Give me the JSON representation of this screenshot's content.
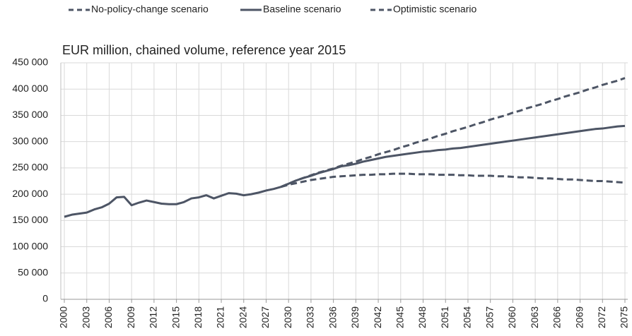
{
  "chart_data": {
    "type": "line",
    "subtitle": "EUR million, chained volume, reference year 2015",
    "x": [
      2000,
      2001,
      2002,
      2003,
      2004,
      2005,
      2006,
      2007,
      2008,
      2009,
      2010,
      2011,
      2012,
      2013,
      2014,
      2015,
      2016,
      2017,
      2018,
      2019,
      2020,
      2021,
      2022,
      2023,
      2024,
      2025,
      2026,
      2027,
      2028,
      2029,
      2030,
      2031,
      2032,
      2033,
      2034,
      2035,
      2036,
      2037,
      2038,
      2039,
      2040,
      2041,
      2042,
      2043,
      2044,
      2045,
      2046,
      2047,
      2048,
      2049,
      2050,
      2051,
      2052,
      2053,
      2054,
      2055,
      2056,
      2057,
      2058,
      2059,
      2060,
      2061,
      2062,
      2063,
      2064,
      2065,
      2066,
      2067,
      2068,
      2069,
      2070,
      2071,
      2072,
      2073,
      2074,
      2075
    ],
    "series": [
      {
        "name": "No-policy-change scenario",
        "color": "#4d5565",
        "dashed": true,
        "values": [
          null,
          null,
          null,
          null,
          null,
          null,
          null,
          null,
          null,
          null,
          null,
          null,
          null,
          null,
          null,
          null,
          null,
          null,
          null,
          null,
          null,
          null,
          null,
          null,
          null,
          null,
          null,
          null,
          null,
          214000,
          218000,
          221000,
          224000,
          227000,
          229000,
          231000,
          233000,
          234000,
          235000,
          236000,
          237000,
          237000,
          238000,
          238000,
          239000,
          239000,
          239000,
          238000,
          238000,
          238000,
          237000,
          237000,
          237000,
          236000,
          236000,
          235000,
          235000,
          235000,
          234000,
          234000,
          233000,
          232000,
          232000,
          231000,
          230000,
          230000,
          229000,
          228000,
          228000,
          227000,
          226000,
          225000,
          225000,
          224000,
          223000,
          222000
        ]
      },
      {
        "name": "Baseline scenario",
        "color": "#4d5565",
        "dashed": false,
        "values": [
          157000,
          161000,
          163000,
          165000,
          171000,
          175000,
          182000,
          194000,
          195000,
          179000,
          184000,
          188000,
          185000,
          182000,
          181000,
          181000,
          185000,
          192000,
          194000,
          198000,
          192000,
          197000,
          202000,
          201000,
          198000,
          200000,
          203000,
          207000,
          210000,
          214000,
          220000,
          226000,
          231000,
          235000,
          240000,
          244000,
          248000,
          253000,
          255000,
          258000,
          262000,
          265000,
          268000,
          271000,
          273000,
          275000,
          277000,
          279000,
          281000,
          282000,
          284000,
          285000,
          287000,
          288000,
          290000,
          292000,
          294000,
          296000,
          298000,
          300000,
          302000,
          304000,
          306000,
          308000,
          310000,
          312000,
          314000,
          316000,
          318000,
          320000,
          322000,
          324000,
          325000,
          327000,
          329000,
          330000
        ]
      },
      {
        "name": "Optimistic scenario",
        "color": "#4d5565",
        "dashed": true,
        "values": [
          null,
          null,
          null,
          null,
          null,
          null,
          null,
          null,
          null,
          null,
          null,
          null,
          null,
          null,
          null,
          null,
          null,
          null,
          null,
          null,
          null,
          null,
          null,
          null,
          null,
          null,
          null,
          null,
          null,
          214000,
          220000,
          226000,
          231000,
          236000,
          241000,
          245000,
          249000,
          254000,
          258000,
          262000,
          267000,
          271000,
          276000,
          280000,
          284000,
          289000,
          293000,
          298000,
          302000,
          306000,
          311000,
          315000,
          320000,
          324000,
          328000,
          333000,
          337000,
          342000,
          346000,
          350000,
          355000,
          359000,
          364000,
          368000,
          372000,
          377000,
          381000,
          386000,
          390000,
          394000,
          399000,
          403000,
          408000,
          412000,
          416000,
          421000
        ]
      }
    ],
    "xlim": [
      2000,
      2075
    ],
    "xticks": [
      2000,
      2003,
      2006,
      2009,
      2012,
      2015,
      2018,
      2021,
      2024,
      2027,
      2030,
      2033,
      2036,
      2039,
      2042,
      2045,
      2048,
      2051,
      2054,
      2057,
      2060,
      2063,
      2066,
      2069,
      2072,
      2075
    ],
    "ylim": [
      0,
      450000
    ],
    "yticks": [
      0,
      {
        "value": 50000,
        "label": "50 000"
      },
      {
        "value": 100000,
        "label": "100 000"
      },
      {
        "value": 150000,
        "label": "150 000"
      },
      {
        "value": 200000,
        "label": "200 000"
      },
      {
        "value": 250000,
        "label": "250 000"
      },
      {
        "value": 300000,
        "label": "300 000"
      },
      {
        "value": 350000,
        "label": "350 000"
      },
      {
        "value": 400000,
        "label": "400 000"
      },
      {
        "value": 450000,
        "label": "450 000"
      }
    ],
    "grid": true,
    "legend": "top"
  }
}
